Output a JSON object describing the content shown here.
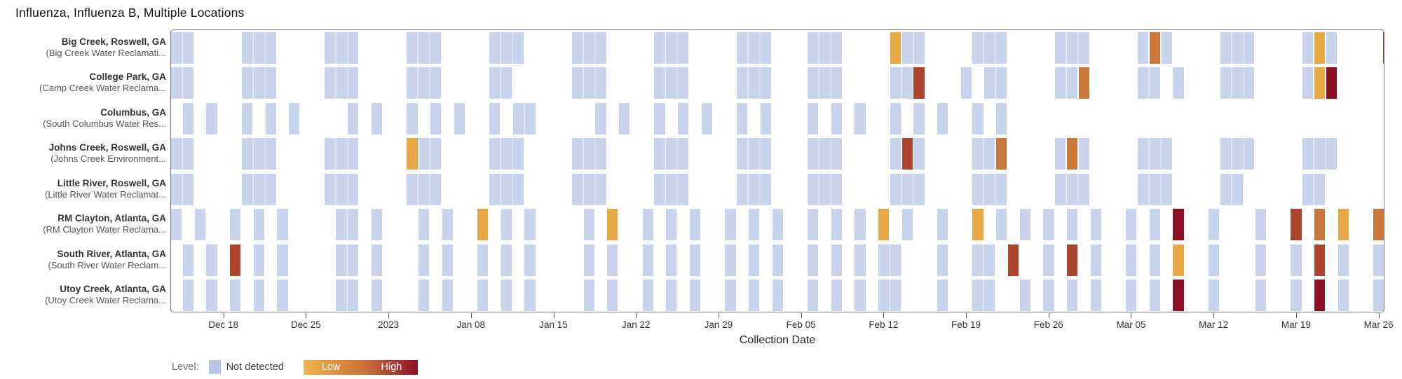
{
  "title": "Influenza, Influenza B, Multiple Locations",
  "xaxis": {
    "label": "Collection Date",
    "ticks": [
      {
        "day": 4,
        "label": "Dec 18"
      },
      {
        "day": 11,
        "label": "Dec 25"
      },
      {
        "day": 18,
        "label": "2023"
      },
      {
        "day": 25,
        "label": "Jan 08"
      },
      {
        "day": 32,
        "label": "Jan 15"
      },
      {
        "day": 39,
        "label": "Jan 22"
      },
      {
        "day": 46,
        "label": "Jan 29"
      },
      {
        "day": 53,
        "label": "Feb 05"
      },
      {
        "day": 60,
        "label": "Feb 12"
      },
      {
        "day": 67,
        "label": "Feb 19"
      },
      {
        "day": 74,
        "label": "Feb 26"
      },
      {
        "day": 81,
        "label": "Mar 05"
      },
      {
        "day": 88,
        "label": "Mar 12"
      },
      {
        "day": 95,
        "label": "Mar 19"
      },
      {
        "day": 102,
        "label": "Mar 26"
      }
    ]
  },
  "legend": {
    "prefix": "Level:",
    "not_detected_label": "Not detected",
    "low_label": "Low",
    "high_label": "High"
  },
  "colors": {
    "nd": "#c9d3ec",
    "l1": "#e8a845",
    "l2": "#c9773b",
    "l3": "#ad452e",
    "l4": "#8c1127",
    "swatch_nd": "#b9c5e7",
    "gradient_start": "#f2b44d",
    "gradient_mid": "#c96f38",
    "gradient_end": "#8c1127",
    "plot_border": "#7d7d7d"
  },
  "chart_data": {
    "type": "heatmap",
    "note": "cells = [start_day_offset, span_days, level]; day offset 0 = left edge of plot (~Dec 14, 2022); level keys: nd=Not detected, l1..l4 = increasing concentration Low to High",
    "day_span": 103,
    "levels": [
      "nd",
      "l1",
      "l2",
      "l3",
      "l4"
    ],
    "rows": [
      {
        "name": "Big Creek, Roswell, GA",
        "subtitle": "(Big Creek Water Reclamati...",
        "cells": [
          [
            0,
            2,
            "nd"
          ],
          [
            6,
            3,
            "nd"
          ],
          [
            13,
            3,
            "nd"
          ],
          [
            20,
            3,
            "nd"
          ],
          [
            27,
            3,
            "nd"
          ],
          [
            34,
            3,
            "nd"
          ],
          [
            41,
            3,
            "nd"
          ],
          [
            48,
            3,
            "nd"
          ],
          [
            54,
            3,
            "nd"
          ],
          [
            61,
            1,
            "l1"
          ],
          [
            62,
            2,
            "nd"
          ],
          [
            68,
            3,
            "nd"
          ],
          [
            75,
            3,
            "nd"
          ],
          [
            82,
            1,
            "nd"
          ],
          [
            83,
            1,
            "l2"
          ],
          [
            84,
            1,
            "nd"
          ],
          [
            89,
            3,
            "nd"
          ],
          [
            96,
            1,
            "nd"
          ],
          [
            97,
            1,
            "l1"
          ],
          [
            98,
            1,
            "nd"
          ],
          [
            102.8,
            1,
            "l3"
          ]
        ]
      },
      {
        "name": "College Park, GA",
        "subtitle": "(Camp Creek Water Reclama...",
        "cells": [
          [
            0,
            2,
            "nd"
          ],
          [
            6,
            3,
            "nd"
          ],
          [
            13,
            3,
            "nd"
          ],
          [
            20,
            3,
            "nd"
          ],
          [
            27,
            2,
            "nd"
          ],
          [
            34,
            3,
            "nd"
          ],
          [
            41,
            3,
            "nd"
          ],
          [
            48,
            3,
            "nd"
          ],
          [
            54,
            3,
            "nd"
          ],
          [
            61,
            2,
            "nd"
          ],
          [
            63,
            1,
            "l3"
          ],
          [
            67,
            1,
            "nd"
          ],
          [
            69,
            2,
            "nd"
          ],
          [
            75,
            2,
            "nd"
          ],
          [
            77,
            1,
            "l2"
          ],
          [
            82,
            2,
            "nd"
          ],
          [
            85,
            1,
            "nd"
          ],
          [
            89,
            3,
            "nd"
          ],
          [
            96,
            1,
            "nd"
          ],
          [
            97,
            1,
            "l1"
          ],
          [
            98,
            1,
            "l4"
          ]
        ]
      },
      {
        "name": "Columbus, GA",
        "subtitle": "(South Columbus Water Res...",
        "cells": [
          [
            1,
            1,
            "nd"
          ],
          [
            3,
            1,
            "nd"
          ],
          [
            6,
            1,
            "nd"
          ],
          [
            8,
            1,
            "nd"
          ],
          [
            10,
            1,
            "nd"
          ],
          [
            15,
            1,
            "nd"
          ],
          [
            17,
            1,
            "nd"
          ],
          [
            20,
            1,
            "nd"
          ],
          [
            22,
            1,
            "nd"
          ],
          [
            24,
            1,
            "nd"
          ],
          [
            27,
            1,
            "nd"
          ],
          [
            29,
            2,
            "nd"
          ],
          [
            36,
            1,
            "nd"
          ],
          [
            38,
            1,
            "nd"
          ],
          [
            41,
            1,
            "nd"
          ],
          [
            43,
            1,
            "nd"
          ],
          [
            45,
            1,
            "nd"
          ],
          [
            48,
            1,
            "nd"
          ],
          [
            50,
            1,
            "nd"
          ],
          [
            54,
            1,
            "nd"
          ],
          [
            56,
            1,
            "nd"
          ],
          [
            58,
            1,
            "nd"
          ],
          [
            61,
            1,
            "nd"
          ],
          [
            63,
            1,
            "nd"
          ],
          [
            65,
            1,
            "nd"
          ],
          [
            68,
            1,
            "nd"
          ],
          [
            70,
            1,
            "nd"
          ]
        ]
      },
      {
        "name": "Johns Creek, Roswell, GA",
        "subtitle": "(Johns Creek Environment...",
        "cells": [
          [
            0,
            2,
            "nd"
          ],
          [
            6,
            3,
            "nd"
          ],
          [
            13,
            3,
            "nd"
          ],
          [
            20,
            1,
            "l1"
          ],
          [
            21,
            2,
            "nd"
          ],
          [
            27,
            3,
            "nd"
          ],
          [
            34,
            3,
            "nd"
          ],
          [
            41,
            3,
            "nd"
          ],
          [
            48,
            3,
            "nd"
          ],
          [
            54,
            3,
            "nd"
          ],
          [
            61,
            1,
            "nd"
          ],
          [
            62,
            1,
            "l3"
          ],
          [
            63,
            1,
            "nd"
          ],
          [
            68,
            2,
            "nd"
          ],
          [
            70,
            1,
            "l2"
          ],
          [
            75,
            1,
            "nd"
          ],
          [
            76,
            1,
            "l2"
          ],
          [
            77,
            1,
            "nd"
          ],
          [
            82,
            3,
            "nd"
          ],
          [
            89,
            3,
            "nd"
          ],
          [
            96,
            3,
            "nd"
          ]
        ]
      },
      {
        "name": "Little River, Roswell, GA",
        "subtitle": "(Little River Water Reclamat...",
        "cells": [
          [
            0,
            2,
            "nd"
          ],
          [
            6,
            3,
            "nd"
          ],
          [
            13,
            3,
            "nd"
          ],
          [
            20,
            3,
            "nd"
          ],
          [
            27,
            3,
            "nd"
          ],
          [
            34,
            3,
            "nd"
          ],
          [
            41,
            3,
            "nd"
          ],
          [
            48,
            3,
            "nd"
          ],
          [
            54,
            3,
            "nd"
          ],
          [
            61,
            3,
            "nd"
          ],
          [
            68,
            3,
            "nd"
          ],
          [
            75,
            3,
            "nd"
          ],
          [
            82,
            3,
            "nd"
          ],
          [
            89,
            2,
            "nd"
          ],
          [
            96,
            2,
            "nd"
          ]
        ]
      },
      {
        "name": "RM Clayton, Atlanta, GA",
        "subtitle": "(RM Clayton Water Reclama...",
        "cells": [
          [
            0,
            1,
            "nd"
          ],
          [
            2,
            1,
            "nd"
          ],
          [
            5,
            1,
            "nd"
          ],
          [
            7,
            1,
            "nd"
          ],
          [
            9,
            1,
            "nd"
          ],
          [
            14,
            2,
            "nd"
          ],
          [
            17,
            1,
            "nd"
          ],
          [
            21,
            1,
            "nd"
          ],
          [
            23,
            1,
            "nd"
          ],
          [
            26,
            1,
            "l1"
          ],
          [
            28,
            1,
            "nd"
          ],
          [
            30,
            1,
            "nd"
          ],
          [
            35,
            1,
            "nd"
          ],
          [
            37,
            1,
            "l1"
          ],
          [
            40,
            1,
            "nd"
          ],
          [
            42,
            1,
            "nd"
          ],
          [
            44,
            1,
            "nd"
          ],
          [
            47,
            1,
            "nd"
          ],
          [
            49,
            1,
            "nd"
          ],
          [
            51,
            1,
            "nd"
          ],
          [
            54,
            1,
            "nd"
          ],
          [
            56,
            1,
            "nd"
          ],
          [
            58,
            1,
            "nd"
          ],
          [
            60,
            1,
            "l1"
          ],
          [
            62,
            1,
            "nd"
          ],
          [
            65,
            1,
            "nd"
          ],
          [
            68,
            1,
            "l1"
          ],
          [
            70,
            1,
            "nd"
          ],
          [
            72,
            1,
            "nd"
          ],
          [
            74,
            1,
            "nd"
          ],
          [
            76,
            1,
            "nd"
          ],
          [
            78,
            1,
            "nd"
          ],
          [
            81,
            1,
            "nd"
          ],
          [
            83,
            1,
            "nd"
          ],
          [
            85,
            1,
            "l4"
          ],
          [
            88,
            1,
            "nd"
          ],
          [
            92,
            1,
            "nd"
          ],
          [
            95,
            1,
            "l3"
          ],
          [
            97,
            1,
            "l2"
          ],
          [
            99,
            1,
            "l1"
          ],
          [
            102,
            1,
            "l2"
          ]
        ]
      },
      {
        "name": "South River, Atlanta, GA",
        "subtitle": "(South River Water Reclam...",
        "cells": [
          [
            1,
            1,
            "nd"
          ],
          [
            3,
            1,
            "nd"
          ],
          [
            5,
            1,
            "l3"
          ],
          [
            7,
            1,
            "nd"
          ],
          [
            9,
            1,
            "nd"
          ],
          [
            14,
            2,
            "nd"
          ],
          [
            17,
            1,
            "nd"
          ],
          [
            21,
            1,
            "nd"
          ],
          [
            23,
            1,
            "nd"
          ],
          [
            26,
            1,
            "nd"
          ],
          [
            28,
            1,
            "nd"
          ],
          [
            30,
            1,
            "nd"
          ],
          [
            35,
            1,
            "nd"
          ],
          [
            37,
            1,
            "nd"
          ],
          [
            40,
            1,
            "nd"
          ],
          [
            42,
            1,
            "nd"
          ],
          [
            44,
            1,
            "nd"
          ],
          [
            47,
            1,
            "nd"
          ],
          [
            49,
            1,
            "nd"
          ],
          [
            51,
            1,
            "nd"
          ],
          [
            54,
            1,
            "nd"
          ],
          [
            56,
            1,
            "nd"
          ],
          [
            58,
            1,
            "nd"
          ],
          [
            60,
            2,
            "nd"
          ],
          [
            65,
            1,
            "nd"
          ],
          [
            68,
            2,
            "nd"
          ],
          [
            71,
            1,
            "l3"
          ],
          [
            74,
            1,
            "nd"
          ],
          [
            76,
            1,
            "l3"
          ],
          [
            78,
            1,
            "nd"
          ],
          [
            81,
            1,
            "nd"
          ],
          [
            83,
            1,
            "nd"
          ],
          [
            85,
            1,
            "l1"
          ],
          [
            88,
            1,
            "nd"
          ],
          [
            92,
            1,
            "nd"
          ],
          [
            95,
            1,
            "nd"
          ],
          [
            97,
            1,
            "l3"
          ],
          [
            99,
            1,
            "nd"
          ],
          [
            102,
            1,
            "nd"
          ]
        ]
      },
      {
        "name": "Utoy Creek, Atlanta, GA",
        "subtitle": "(Utoy Creek Water Reclama...",
        "cells": [
          [
            1,
            1,
            "nd"
          ],
          [
            3,
            1,
            "nd"
          ],
          [
            5,
            1,
            "nd"
          ],
          [
            7,
            1,
            "nd"
          ],
          [
            9,
            1,
            "nd"
          ],
          [
            14,
            2,
            "nd"
          ],
          [
            17,
            1,
            "nd"
          ],
          [
            21,
            1,
            "nd"
          ],
          [
            23,
            1,
            "nd"
          ],
          [
            26,
            1,
            "nd"
          ],
          [
            28,
            1,
            "nd"
          ],
          [
            30,
            1,
            "nd"
          ],
          [
            35,
            1,
            "nd"
          ],
          [
            37,
            1,
            "nd"
          ],
          [
            40,
            1,
            "nd"
          ],
          [
            42,
            1,
            "nd"
          ],
          [
            44,
            1,
            "nd"
          ],
          [
            47,
            1,
            "nd"
          ],
          [
            49,
            1,
            "nd"
          ],
          [
            51,
            1,
            "nd"
          ],
          [
            54,
            1,
            "nd"
          ],
          [
            56,
            1,
            "nd"
          ],
          [
            58,
            1,
            "nd"
          ],
          [
            60,
            2,
            "nd"
          ],
          [
            65,
            1,
            "nd"
          ],
          [
            68,
            2,
            "nd"
          ],
          [
            72,
            1,
            "nd"
          ],
          [
            74,
            1,
            "nd"
          ],
          [
            76,
            1,
            "nd"
          ],
          [
            78,
            1,
            "nd"
          ],
          [
            81,
            1,
            "nd"
          ],
          [
            83,
            1,
            "nd"
          ],
          [
            85,
            1,
            "l4"
          ],
          [
            88,
            1,
            "nd"
          ],
          [
            92,
            1,
            "nd"
          ],
          [
            95,
            1,
            "nd"
          ],
          [
            97,
            1,
            "l4"
          ],
          [
            99,
            1,
            "nd"
          ],
          [
            102,
            1,
            "nd"
          ]
        ]
      }
    ]
  }
}
